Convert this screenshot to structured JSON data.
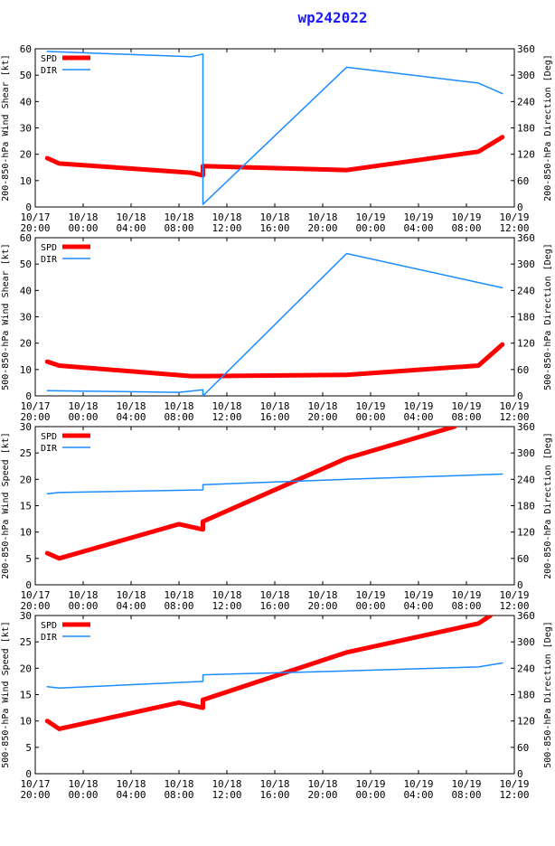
{
  "title": "wp242022",
  "colors": {
    "spd": "#ff0000",
    "dir": "#1a8cff",
    "title": "#1a1aff"
  },
  "x_ticks": [
    [
      "10/17",
      "20:00"
    ],
    [
      "10/18",
      "00:00"
    ],
    [
      "10/18",
      "04:00"
    ],
    [
      "10/18",
      "08:00"
    ],
    [
      "10/18",
      "12:00"
    ],
    [
      "10/18",
      "16:00"
    ],
    [
      "10/18",
      "20:00"
    ],
    [
      "10/19",
      "00:00"
    ],
    [
      "10/19",
      "04:00"
    ],
    [
      "10/19",
      "08:00"
    ],
    [
      "10/19",
      "12:00"
    ]
  ],
  "chart_data": [
    {
      "type": "line",
      "xlim": [
        "10/17 20:00",
        "10/19 12:00"
      ],
      "ylabel": "200-850-hPa Wind Shear [kt]",
      "y2label": "200-850-hPa Direction [Deg]",
      "ylim": [
        0,
        60
      ],
      "yticks": [
        0,
        10,
        20,
        30,
        40,
        50,
        60
      ],
      "y2lim": [
        0,
        360
      ],
      "y2ticks": [
        0,
        60,
        120,
        180,
        240,
        300,
        360
      ],
      "legend": [
        "SPD",
        "DIR"
      ],
      "legend_position": "top-left",
      "series": [
        {
          "name": "SPD",
          "axis": "left",
          "x": [
            "10/17 21:00",
            "10/17 22:00",
            "10/18 09:00",
            "10/18 10:00",
            "10/18 10:00",
            "10/18 22:00",
            "10/19 09:00",
            "10/19 11:00"
          ],
          "y": [
            18.5,
            16.5,
            13,
            12,
            15.5,
            14,
            21,
            26.5
          ]
        },
        {
          "name": "DIR",
          "axis": "right",
          "x": [
            "10/17 21:00",
            "10/18 09:00",
            "10/18 10:00",
            "10/18 10:00",
            "10/18 22:00",
            "10/19 09:00",
            "10/19 11:00"
          ],
          "y": [
            354,
            342,
            348,
            6,
            318,
            282,
            258
          ]
        }
      ]
    },
    {
      "type": "line",
      "xlim": [
        "10/17 20:00",
        "10/19 12:00"
      ],
      "ylabel": "500-850-hPa Wind Shear [kt]",
      "y2label": "500-850-hPa Direction [Deg]",
      "ylim": [
        0,
        60
      ],
      "yticks": [
        0,
        10,
        20,
        30,
        40,
        50,
        60
      ],
      "y2lim": [
        0,
        360
      ],
      "y2ticks": [
        0,
        60,
        120,
        180,
        240,
        300,
        360
      ],
      "legend": [
        "SPD",
        "DIR"
      ],
      "legend_position": "top-left",
      "series": [
        {
          "name": "SPD",
          "axis": "left",
          "x": [
            "10/17 21:00",
            "10/17 22:00",
            "10/18 09:00",
            "10/18 10:00",
            "10/18 22:00",
            "10/19 09:00",
            "10/19 11:00"
          ],
          "y": [
            13,
            11.5,
            7.5,
            7.5,
            8,
            11.5,
            19.5
          ]
        },
        {
          "name": "DIR",
          "axis": "right",
          "x": [
            "10/17 21:00",
            "10/18 08:00",
            "10/18 10:00",
            "10/18 10:00",
            "10/18 22:00",
            "10/19 09:00",
            "10/19 11:00"
          ],
          "y": [
            12,
            8,
            14,
            0,
            324,
            258,
            246
          ]
        }
      ]
    },
    {
      "type": "line",
      "xlim": [
        "10/17 20:00",
        "10/19 12:00"
      ],
      "ylabel": "200-850-hPa Wind Speed [kt]",
      "y2label": "200-850-hPa Direction [Deg]",
      "ylim": [
        0,
        30
      ],
      "yticks": [
        0,
        5,
        10,
        15,
        20,
        25,
        30
      ],
      "y2lim": [
        0,
        360
      ],
      "y2ticks": [
        0,
        60,
        120,
        180,
        240,
        300,
        360
      ],
      "legend": [
        "SPD",
        "DIR"
      ],
      "legend_position": "top-left",
      "series": [
        {
          "name": "SPD",
          "axis": "left",
          "x": [
            "10/17 21:00",
            "10/17 22:00",
            "10/18 08:00",
            "10/18 10:00",
            "10/18 10:00",
            "10/18 22:00",
            "10/19 07:00"
          ],
          "y": [
            6,
            5,
            11.5,
            10.5,
            12,
            24,
            30
          ]
        },
        {
          "name": "DIR",
          "axis": "right",
          "x": [
            "10/17 21:00",
            "10/17 22:00",
            "10/18 10:00",
            "10/18 10:00",
            "10/18 22:00",
            "10/19 11:00"
          ],
          "y": [
            207,
            210,
            216,
            228,
            240,
            252
          ]
        }
      ]
    },
    {
      "type": "line",
      "xlim": [
        "10/17 20:00",
        "10/19 12:00"
      ],
      "ylabel": "500-850-hPa Wind Speed [kt]",
      "y2label": "500-850-hPa Direction [Deg]",
      "ylim": [
        0,
        30
      ],
      "yticks": [
        0,
        5,
        10,
        15,
        20,
        25,
        30
      ],
      "y2lim": [
        0,
        360
      ],
      "y2ticks": [
        0,
        60,
        120,
        180,
        240,
        300,
        360
      ],
      "legend": [
        "SPD",
        "DIR"
      ],
      "legend_position": "top-left",
      "series": [
        {
          "name": "SPD",
          "axis": "left",
          "x": [
            "10/17 21:00",
            "10/17 22:00",
            "10/18 08:00",
            "10/18 10:00",
            "10/18 10:00",
            "10/18 22:00",
            "10/19 09:00",
            "10/19 10:00"
          ],
          "y": [
            10,
            8.5,
            13.5,
            12.5,
            14,
            23,
            28.5,
            30
          ]
        },
        {
          "name": "DIR",
          "axis": "right",
          "x": [
            "10/17 21:00",
            "10/17 22:00",
            "10/18 10:00",
            "10/18 10:00",
            "10/18 22:00",
            "10/19 09:00",
            "10/19 11:00"
          ],
          "y": [
            198,
            195,
            210,
            225,
            234,
            243,
            252
          ]
        }
      ]
    }
  ]
}
